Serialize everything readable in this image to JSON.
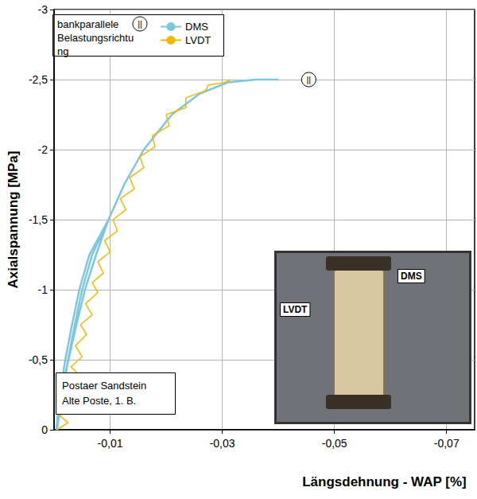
{
  "chart_data": {
    "type": "line",
    "x_label": "Längsdehnung - WAP [%]",
    "y_label": "Axialspannung [MPa]",
    "legend_title": "bankparallele Belastungsrichtung",
    "legend": "upper left",
    "grid": true,
    "note": [
      "Postaer Sandstein",
      "Alte Poste, 1. B."
    ],
    "photo_labels": [
      "LVDT",
      "DMS"
    ],
    "annotations": [
      {
        "text": "||",
        "x": -0.044,
        "y": -2.5
      }
    ],
    "xlim": [
      0,
      -0.075
    ],
    "xticks": [
      {
        "value": -0.01,
        "label": "-0,01"
      },
      {
        "value": -0.03,
        "label": "-0,03"
      },
      {
        "value": -0.05,
        "label": "-0,05"
      },
      {
        "value": -0.07,
        "label": "-0,07"
      }
    ],
    "ylim": [
      0,
      -3
    ],
    "yticks": [
      0,
      {
        "value": -0.5,
        "label": "-0,5"
      },
      -1,
      {
        "value": -1.5,
        "label": "-1,5"
      },
      -2,
      {
        "value": -2.5,
        "label": "-2,5"
      },
      -3
    ],
    "series": [
      {
        "name": "DMS",
        "color": "#7cc6de",
        "x": [
          -0.0005,
          -0.0015,
          -0.0025,
          -0.0037,
          -0.005,
          -0.0068,
          -0.0097,
          -0.0075,
          -0.0055,
          -0.0037,
          -0.002,
          -0.0008,
          -0.0004,
          -0.001,
          -0.002,
          -0.0032,
          -0.0045,
          -0.0063,
          -0.0097,
          -0.0125,
          -0.016,
          -0.021,
          -0.026,
          -0.031,
          -0.036,
          -0.04
        ],
        "values": [
          0,
          -0.25,
          -0.5,
          -0.75,
          -1,
          -1.25,
          -1.5,
          -1.25,
          -1.0,
          -0.7,
          -0.4,
          -0.1,
          0,
          -0.25,
          -0.5,
          -0.75,
          -1,
          -1.25,
          -1.5,
          -1.75,
          -2.0,
          -2.25,
          -2.4,
          -2.48,
          -2.5,
          -2.5
        ]
      },
      {
        "name": "LVDT",
        "color": "#f4b800",
        "x": [
          -0.0005,
          -0.0025,
          -0.001,
          -0.003,
          -0.0015,
          -0.0035,
          -0.002,
          -0.0042,
          -0.003,
          -0.005,
          -0.0038,
          -0.0058,
          -0.0047,
          -0.0068,
          -0.0056,
          -0.0078,
          -0.0068,
          -0.0088,
          -0.0078,
          -0.01,
          -0.009,
          -0.0113,
          -0.0105,
          -0.0128,
          -0.0118,
          -0.0143,
          -0.0135,
          -0.016,
          -0.0153,
          -0.018,
          -0.0175,
          -0.0205,
          -0.02,
          -0.0235,
          -0.0235,
          -0.027,
          -0.0275,
          -0.0305,
          -0.0315
        ],
        "values": [
          0,
          -0.05,
          -0.1,
          -0.15,
          -0.2,
          -0.27,
          -0.32,
          -0.4,
          -0.45,
          -0.52,
          -0.6,
          -0.68,
          -0.75,
          -0.82,
          -0.9,
          -0.98,
          -1.05,
          -1.12,
          -1.2,
          -1.27,
          -1.35,
          -1.42,
          -1.5,
          -1.57,
          -1.65,
          -1.72,
          -1.8,
          -1.87,
          -1.95,
          -2.02,
          -2.1,
          -2.17,
          -2.25,
          -2.3,
          -2.37,
          -2.42,
          -2.46,
          -2.48,
          -2.5
        ]
      }
    ]
  }
}
